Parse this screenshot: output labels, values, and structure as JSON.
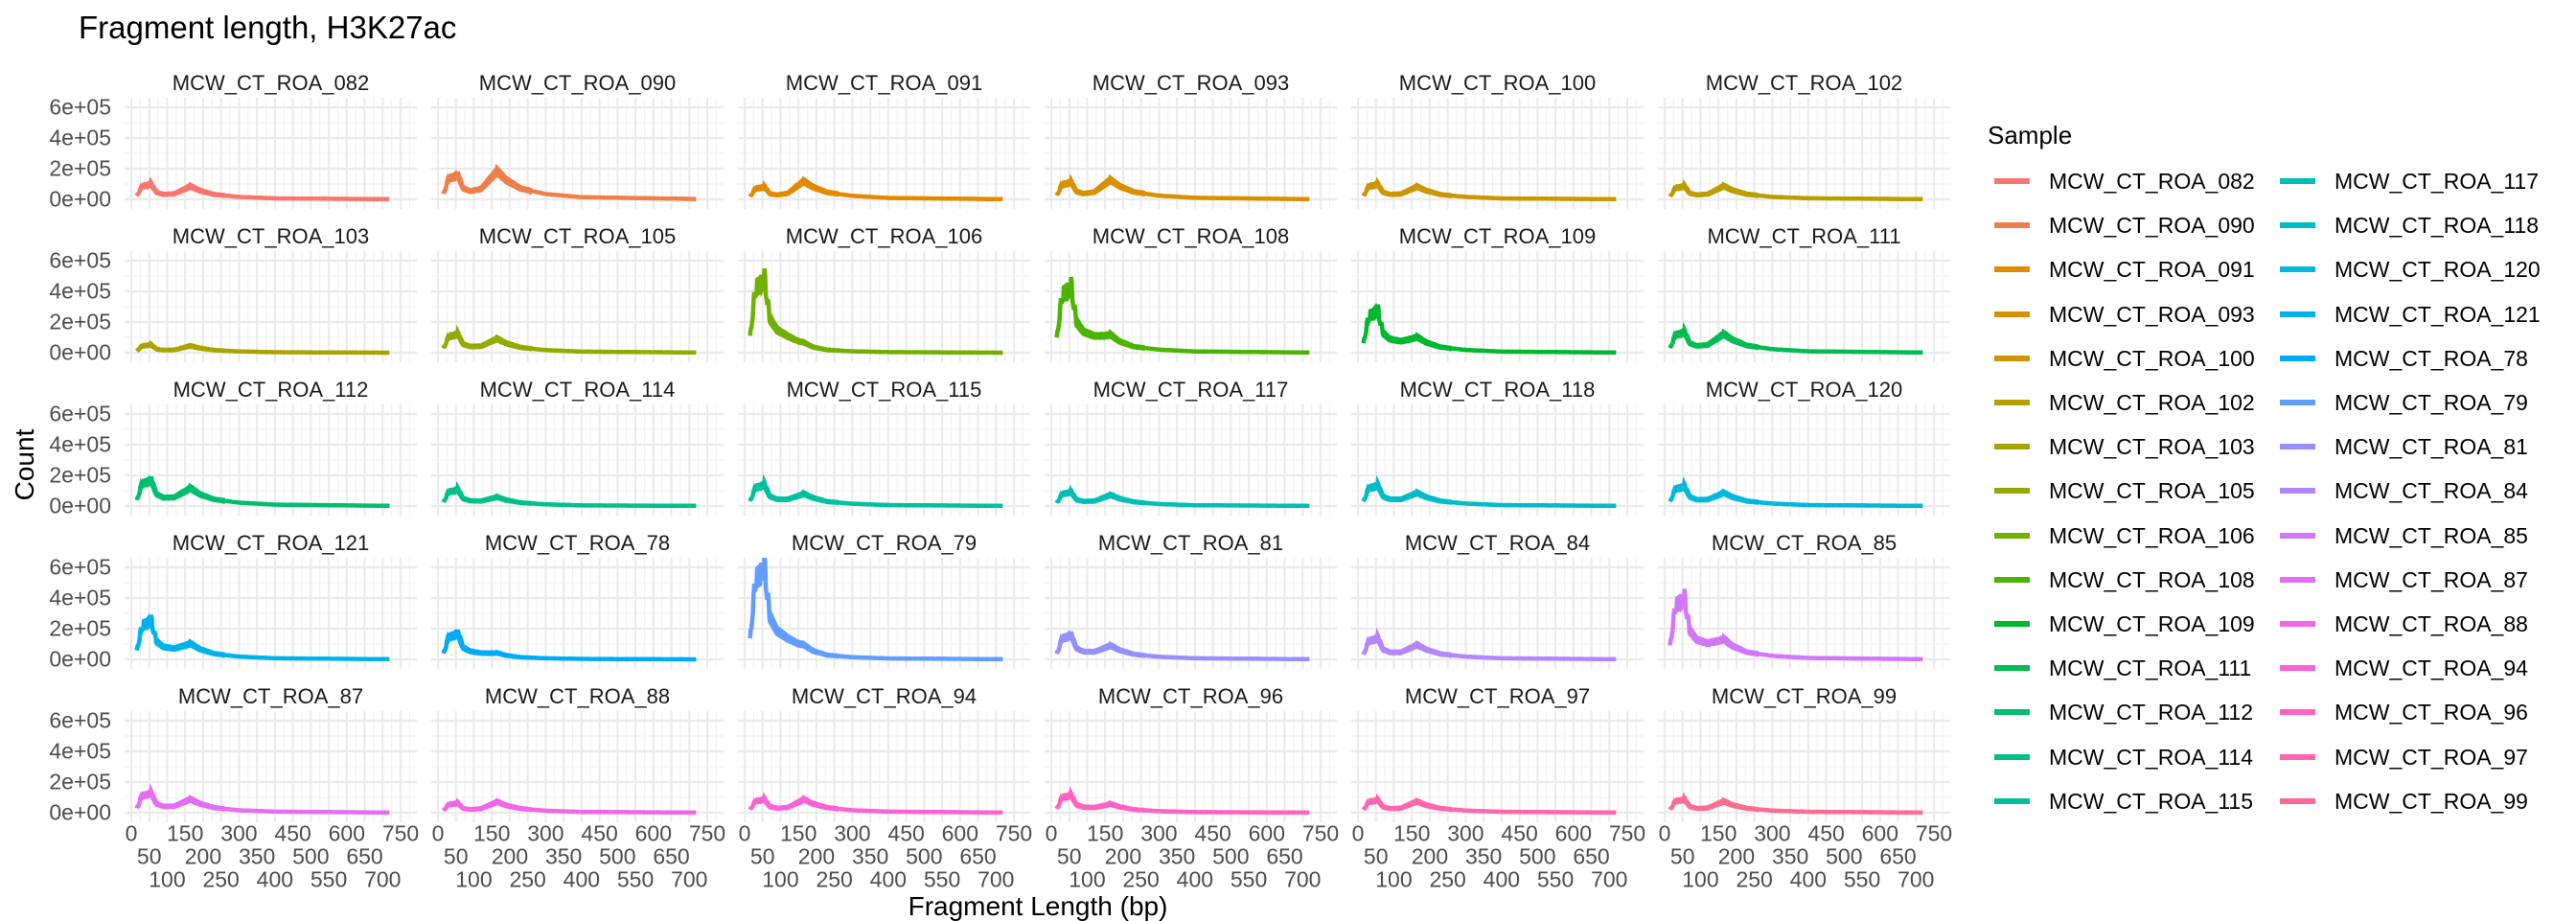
{
  "chart_data": {
    "type": "line",
    "title": "Fragment length, H3K27ac",
    "xlabel": "Fragment Length (bp)",
    "ylabel": "Count",
    "legend_title": "Sample",
    "legend_position": "right",
    "facet_columns": 6,
    "grid": true,
    "xlim": [
      0,
      750
    ],
    "ylim": [
      0,
      600000
    ],
    "x_breaks": [
      0,
      50,
      100,
      150,
      200,
      250,
      300,
      350,
      400,
      450,
      500,
      550,
      600,
      650,
      700,
      750
    ],
    "x_tick_labels": [
      "0",
      "50",
      "100",
      "150",
      "200",
      "250",
      "300",
      "350",
      "400",
      "450",
      "500",
      "550",
      "600",
      "650",
      "700",
      "750"
    ],
    "y_breaks": [
      0,
      200000,
      400000,
      600000
    ],
    "y_tick_labels": [
      "0e+00",
      "2e+05",
      "4e+05",
      "6e+05"
    ],
    "x": [
      15,
      30,
      45,
      55,
      70,
      90,
      120,
      150,
      165,
      190,
      230,
      300,
      400,
      720
    ],
    "series": [
      {
        "name": "MCW_CT_ROA_082",
        "color": "#F8766D",
        "y": [
          20000,
          85000,
          90000,
          100000,
          45000,
          32000,
          36000,
          68000,
          84000,
          57000,
          32000,
          16000,
          6000,
          1000
        ]
      },
      {
        "name": "MCW_CT_ROA_090",
        "color": "#EE7F4A",
        "y": [
          32000,
          136000,
          144000,
          160000,
          72000,
          53000,
          67000,
          144000,
          181000,
          124000,
          70000,
          35000,
          14000,
          2000
        ]
      },
      {
        "name": "MCW_CT_ROA_091",
        "color": "#E38900",
        "y": [
          16000,
          70000,
          74000,
          82000,
          37000,
          28000,
          39000,
          91000,
          116000,
          80000,
          45000,
          23000,
          9000,
          1000
        ]
      },
      {
        "name": "MCW_CT_ROA_093",
        "color": "#D89000",
        "y": [
          23000,
          96000,
          102000,
          113000,
          51000,
          37000,
          47000,
          99000,
          125000,
          85000,
          48000,
          24000,
          10000,
          1000
        ]
      },
      {
        "name": "MCW_CT_ROA_100",
        "color": "#CC9600",
        "y": [
          20000,
          84000,
          89000,
          99000,
          45000,
          32000,
          35000,
          66000,
          82000,
          56000,
          31000,
          16000,
          6000,
          1000
        ]
      },
      {
        "name": "MCW_CT_ROA_102",
        "color": "#BA9E00",
        "y": [
          17000,
          74000,
          78000,
          87000,
          39000,
          29000,
          34000,
          68000,
          85000,
          58000,
          33000,
          16000,
          7000,
          1000
        ]
      },
      {
        "name": "MCW_CT_ROA_103",
        "color": "#A8A400",
        "y": [
          10000,
          44000,
          47000,
          52000,
          23000,
          17000,
          18000,
          36000,
          44000,
          30000,
          17000,
          8000,
          3000,
          0
        ]
      },
      {
        "name": "MCW_CT_ROA_105",
        "color": "#93AA00",
        "y": [
          25000,
          105000,
          111000,
          123000,
          55000,
          40000,
          42000,
          74000,
          90000,
          61000,
          34000,
          17000,
          7000,
          1000
        ]
      },
      {
        "name": "MCW_CT_ROA_106",
        "color": "#72B000",
        "y": [
          98000,
          417000,
          441000,
          490000,
          221000,
          148000,
          107000,
          74000,
          66000,
          37000,
          18000,
          9000,
          4000,
          0
        ]
      },
      {
        "name": "MCW_CT_ROA_108",
        "color": "#4CB400",
        "y": [
          88000,
          374000,
          396000,
          440000,
          198000,
          135000,
          108000,
          109000,
          116000,
          73000,
          39000,
          20000,
          8000,
          1000
        ]
      },
      {
        "name": "MCW_CT_ROA_109",
        "color": "#00B82E",
        "y": [
          56000,
          238000,
          252000,
          280000,
          126000,
          87000,
          74000,
          90000,
          101000,
          66000,
          36000,
          18000,
          7000,
          1000
        ]
      },
      {
        "name": "MCW_CT_ROA_111",
        "color": "#00BC51",
        "y": [
          27000,
          115000,
          122000,
          135000,
          61000,
          44000,
          50000,
          97000,
          120000,
          82000,
          46000,
          23000,
          9000,
          1000
        ]
      },
      {
        "name": "MCW_CT_ROA_112",
        "color": "#00BE6E",
        "y": [
          34000,
          145000,
          153000,
          170000,
          77000,
          54000,
          56000,
          95000,
          115000,
          77000,
          43000,
          22000,
          9000,
          1000
        ]
      },
      {
        "name": "MCW_CT_ROA_114",
        "color": "#00C088",
        "y": [
          22000,
          92000,
          97000,
          108000,
          49000,
          34000,
          32000,
          49000,
          58000,
          39000,
          22000,
          11000,
          4000,
          1000
        ]
      },
      {
        "name": "MCW_CT_ROA_115",
        "color": "#00C19F",
        "y": [
          28000,
          119000,
          126000,
          140000,
          63000,
          44000,
          43000,
          66000,
          79000,
          53000,
          29000,
          15000,
          6000,
          1000
        ]
      },
      {
        "name": "MCW_CT_ROA_117",
        "color": "#00BFB4",
        "y": [
          18000,
          78000,
          83000,
          92000,
          41000,
          30000,
          32000,
          58000,
          71000,
          48000,
          27000,
          13000,
          5000,
          1000
        ]
      },
      {
        "name": "MCW_CT_ROA_118",
        "color": "#00BCC8",
        "y": [
          27000,
          115000,
          122000,
          135000,
          61000,
          43000,
          43000,
          71000,
          85000,
          57000,
          32000,
          16000,
          6000,
          1000
        ]
      },
      {
        "name": "MCW_CT_ROA_120",
        "color": "#00B8DC",
        "y": [
          26000,
          111000,
          117000,
          130000,
          59000,
          41000,
          42000,
          70000,
          85000,
          57000,
          32000,
          16000,
          6000,
          1000
        ]
      },
      {
        "name": "MCW_CT_ROA_121",
        "color": "#00B2EC",
        "y": [
          52000,
          219000,
          232000,
          258000,
          116000,
          80000,
          70000,
          90000,
          102000,
          67000,
          37000,
          18000,
          7000,
          1000
        ]
      },
      {
        "name": "MCW_CT_ROA_78",
        "color": "#00AAFA",
        "y": [
          34000,
          145000,
          153000,
          170000,
          77000,
          52000,
          41000,
          40000,
          42000,
          26000,
          14000,
          7000,
          3000,
          0
        ]
      },
      {
        "name": "MCW_CT_ROA_79",
        "color": "#619CFF",
        "y": [
          122000,
          519000,
          549000,
          610000,
          275000,
          185000,
          136000,
          101000,
          94000,
          55000,
          28000,
          14000,
          6000,
          1000
        ]
      },
      {
        "name": "MCW_CT_ROA_81",
        "color": "#9590FF",
        "y": [
          32000,
          136000,
          144000,
          160000,
          72000,
          50000,
          49000,
          75000,
          89000,
          60000,
          33000,
          17000,
          7000,
          1000
        ]
      },
      {
        "name": "MCW_CT_ROA_84",
        "color": "#B385FF",
        "y": [
          28000,
          119000,
          126000,
          140000,
          63000,
          45000,
          46000,
          77000,
          94000,
          63000,
          35000,
          18000,
          7000,
          1000
        ]
      },
      {
        "name": "MCW_CT_ROA_85",
        "color": "#D177FA",
        "y": [
          82000,
          349000,
          369000,
          410000,
          185000,
          126000,
          105000,
          119000,
          131000,
          85000,
          46000,
          23000,
          9000,
          1000
        ]
      },
      {
        "name": "MCW_CT_ROA_87",
        "color": "#E46EF2",
        "y": [
          26000,
          110000,
          116000,
          129000,
          58000,
          41000,
          42000,
          72000,
          87000,
          59000,
          33000,
          16000,
          7000,
          1000
        ]
      },
      {
        "name": "MCW_CT_ROA_88",
        "color": "#F166E6",
        "y": [
          13000,
          54000,
          57000,
          63000,
          28000,
          21000,
          26000,
          55000,
          70000,
          47000,
          27000,
          13000,
          5000,
          1000
        ]
      },
      {
        "name": "MCW_CT_ROA_94",
        "color": "#FA62D6",
        "y": [
          18000,
          75000,
          79000,
          88000,
          40000,
          29000,
          34000,
          68000,
          86000,
          58000,
          33000,
          16000,
          7000,
          1000
        ]
      },
      {
        "name": "MCW_CT_ROA_96",
        "color": "#FF62C3",
        "y": [
          23000,
          98000,
          104000,
          115000,
          52000,
          36000,
          33000,
          48000,
          57000,
          38000,
          21000,
          10000,
          4000,
          1000
        ]
      },
      {
        "name": "MCW_CT_ROA_97",
        "color": "#FF66AD",
        "y": [
          17000,
          71000,
          75000,
          83000,
          37000,
          27000,
          30000,
          59000,
          72000,
          49000,
          28000,
          14000,
          6000,
          1000
        ]
      },
      {
        "name": "MCW_CT_ROA_99",
        "color": "#FF6C91",
        "y": [
          18000,
          75000,
          79000,
          88000,
          40000,
          28000,
          31000,
          59000,
          73000,
          49000,
          28000,
          14000,
          6000,
          1000
        ]
      }
    ]
  }
}
